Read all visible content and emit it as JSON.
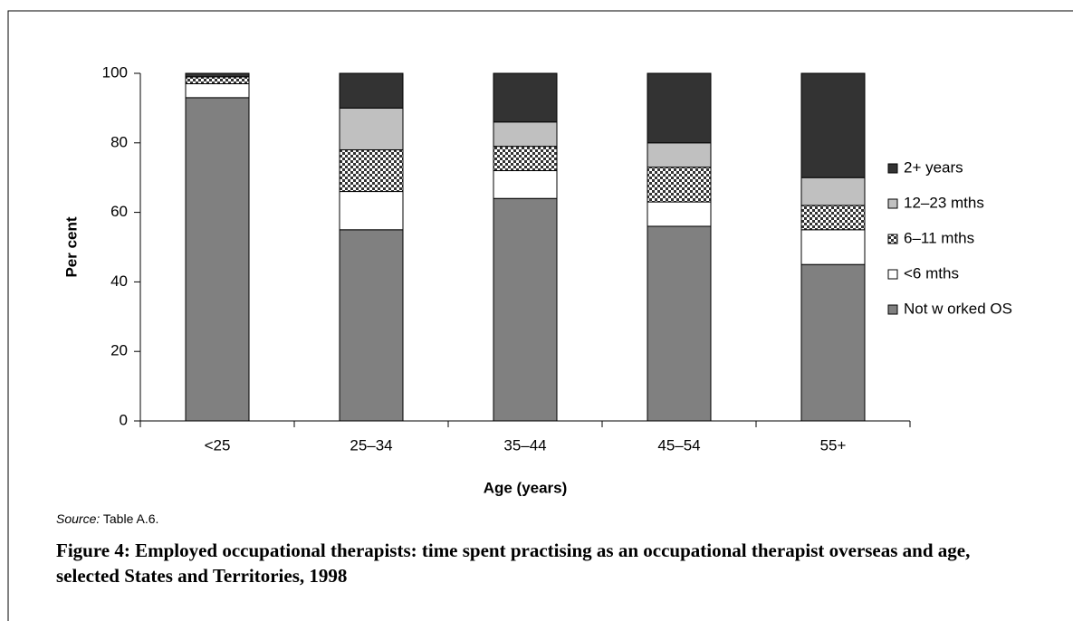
{
  "chart_data": {
    "type": "stacked_bar",
    "title": "Figure 4: Employed occupational therapists: time spent practising as an occupational therapist overseas and age, selected States and Territories, 1998",
    "source_label": "Source:",
    "source": "Table A.6.",
    "x_label": "Age (years)",
    "y_label": "Per cent",
    "categories": [
      "<25",
      "25–34",
      "35–44",
      "45–54",
      "55+"
    ],
    "series": [
      {
        "name": "Not w orked OS",
        "color": "#808080",
        "values": [
          93,
          55,
          64,
          56,
          45
        ]
      },
      {
        "name": "<6 mths",
        "color": "#ffffff",
        "values": [
          4,
          11,
          8,
          7,
          10
        ]
      },
      {
        "name": "6–11 mths",
        "color": "#808080",
        "pattern": "checker",
        "values": [
          2,
          12,
          7,
          10,
          7
        ]
      },
      {
        "name": "12–23 mths",
        "color": "#c0c0c0",
        "values": [
          0,
          12,
          7,
          7,
          8
        ]
      },
      {
        "name": "2+ years",
        "color": "#333333",
        "values": [
          1,
          10,
          14,
          20,
          30
        ]
      }
    ],
    "ylim": [
      0,
      100
    ],
    "yticks": [
      0,
      20,
      40,
      60,
      80,
      100
    ],
    "legend": "right"
  }
}
